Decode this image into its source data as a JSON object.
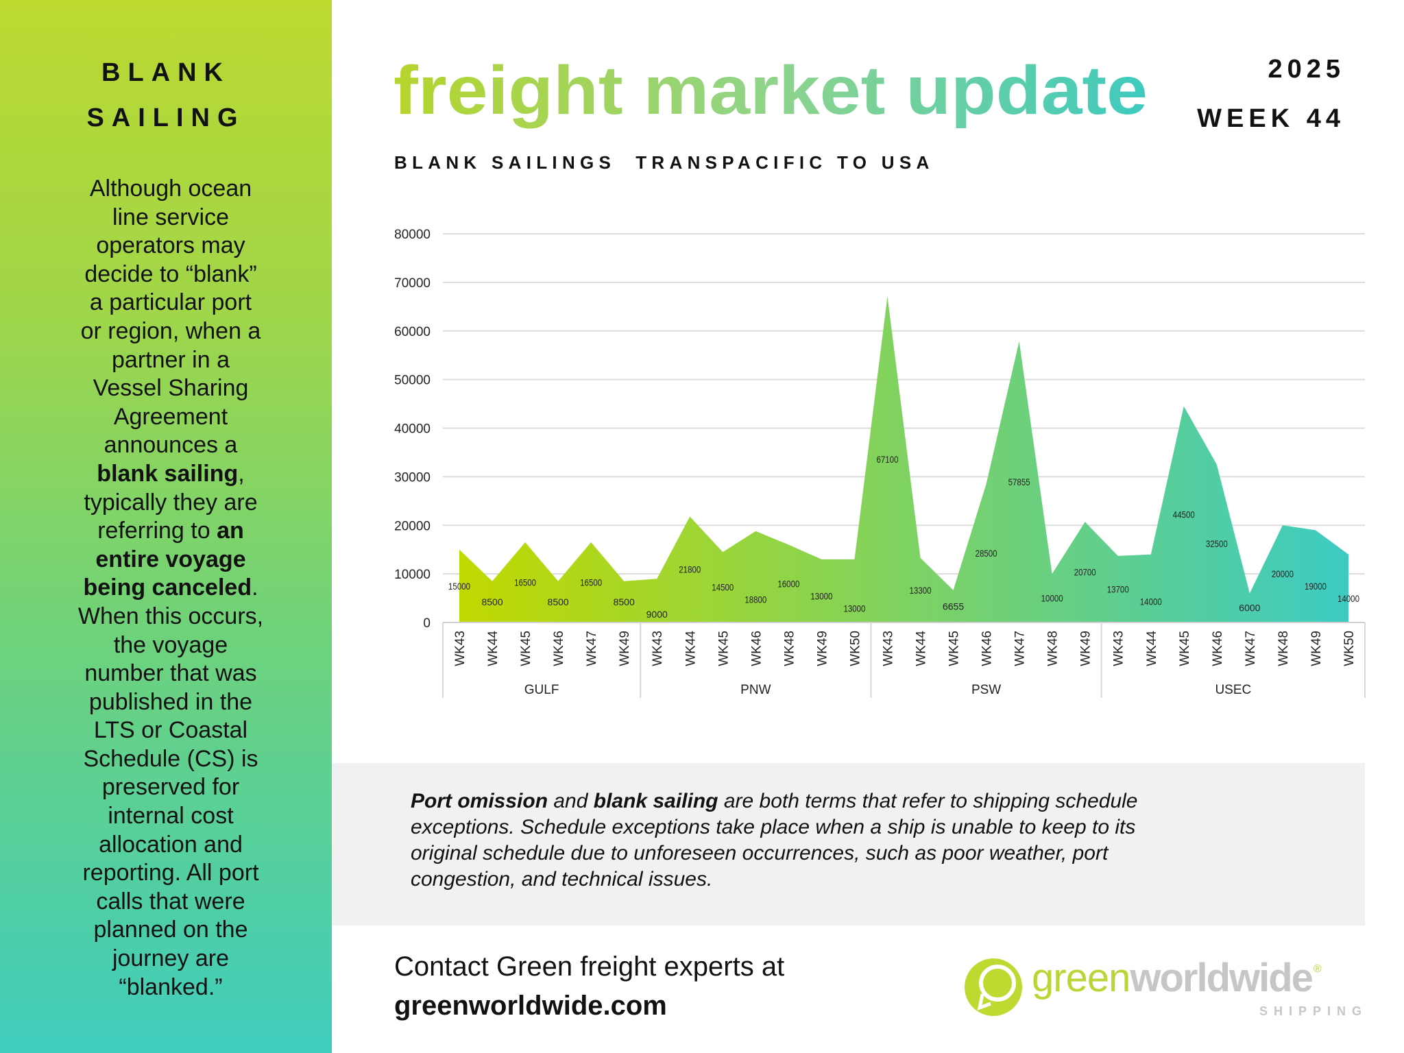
{
  "sidebar": {
    "title_lines": [
      "BLANK",
      "SAILING"
    ],
    "body_lines": [
      [
        {
          "t": "Although ocean"
        }
      ],
      [
        {
          "t": "line service"
        }
      ],
      [
        {
          "t": "operators may"
        }
      ],
      [
        {
          "t": "decide to “blank”"
        }
      ],
      [
        {
          "t": "a particular port"
        }
      ],
      [
        {
          "t": "or region, when a"
        }
      ],
      [
        {
          "t": "partner in a"
        }
      ],
      [
        {
          "t": "Vessel Sharing"
        }
      ],
      [
        {
          "t": "Agreement"
        }
      ],
      [
        {
          "t": "announces a"
        }
      ],
      [
        {
          "t": "blank sailing",
          "b": true
        },
        {
          "t": ","
        }
      ],
      [
        {
          "t": "typically they are"
        }
      ],
      [
        {
          "t": "referring to "
        },
        {
          "t": "an",
          "b": true
        }
      ],
      [
        {
          "t": "entire voyage",
          "b": true
        }
      ],
      [
        {
          "t": "being canceled",
          "b": true
        },
        {
          "t": "."
        }
      ],
      [
        {
          "t": "When this occurs,"
        }
      ],
      [
        {
          "t": "the voyage"
        }
      ],
      [
        {
          "t": "number that was"
        }
      ],
      [
        {
          "t": "published in the"
        }
      ],
      [
        {
          "t": "LTS or Coastal"
        }
      ],
      [
        {
          "t": "Schedule (CS) is"
        }
      ],
      [
        {
          "t": "preserved for"
        }
      ],
      [
        {
          "t": "internal cost"
        }
      ],
      [
        {
          "t": "allocation and"
        }
      ],
      [
        {
          "t": "reporting. All port"
        }
      ],
      [
        {
          "t": "calls that were"
        }
      ],
      [
        {
          "t": "planned on the"
        }
      ],
      [
        {
          "t": "journey are"
        }
      ],
      [
        {
          "t": "“blanked.”"
        }
      ]
    ]
  },
  "header": {
    "title": "freight market update",
    "year": "2025",
    "week": "WEEK 44",
    "subtitle": "BLANK SAILINGS  TRANSPACIFIC TO USA"
  },
  "chart_data": {
    "type": "area",
    "ylim": [
      0,
      80000
    ],
    "yticks": [
      0,
      10000,
      20000,
      30000,
      40000,
      50000,
      60000,
      70000,
      80000
    ],
    "grid": true,
    "legend": "none",
    "data_labels": true,
    "groups": [
      {
        "name": "GULF",
        "weeks": [
          "WK43",
          "WK44",
          "WK45",
          "WK46",
          "WK47",
          "WK49"
        ],
        "values": [
          15000,
          8500,
          16500,
          8500,
          16500,
          8500
        ]
      },
      {
        "name": "PNW",
        "weeks": [
          "WK43",
          "WK44",
          "WK45",
          "WK46",
          "WK48",
          "WK49",
          "WK50"
        ],
        "values": [
          9000,
          21800,
          14500,
          18800,
          16000,
          13000,
          13000
        ]
      },
      {
        "name": "PSW",
        "weeks": [
          "WK43",
          "WK44",
          "WK45",
          "WK46",
          "WK47",
          "WK48",
          "WK49"
        ],
        "values": [
          67100,
          13300,
          6655,
          28500,
          57855,
          10000,
          20700
        ]
      },
      {
        "name": "USEC",
        "weeks": [
          "WK43",
          "WK44",
          "WK45",
          "WK46",
          "WK47",
          "WK48",
          "WK49",
          "WK50"
        ],
        "values": [
          13700,
          14000,
          44500,
          32500,
          6000,
          20000,
          19000,
          14000
        ]
      }
    ],
    "fill_gradient": [
      "#c1d900",
      "#3ccbc2"
    ]
  },
  "note": {
    "lines": [
      [
        {
          "t": "Port omission",
          "b": true
        },
        {
          "t": " and "
        },
        {
          "t": "blank sailing",
          "b": true
        },
        {
          "t": " are both terms that refer to shipping schedule"
        }
      ],
      [
        {
          "t": "exceptions. Schedule exceptions take place when a ship is unable to keep to its"
        }
      ],
      [
        {
          "t": "original schedule due to unforeseen occurrences, such as poor weather, port"
        }
      ],
      [
        {
          "t": "congestion, and technical issues."
        }
      ]
    ]
  },
  "contact": {
    "line1": "Contact Green freight experts at",
    "line2": "greenworldwide.com"
  },
  "logo": {
    "green": "green",
    "worldwide": "worldwide",
    "registered": "®",
    "shipping": "SHIPPING",
    "icon": "globe-arrow-icon"
  },
  "colors": {
    "title_gradient": [
      "#b6d52c",
      "#3ecabf"
    ],
    "sidebar_top": "#bcd930",
    "sidebar_bottom": "#3fcdbd",
    "note_bg": "#f1f1f1",
    "logo_green": "#b8d636",
    "logo_gray": "#c6c6c6"
  }
}
